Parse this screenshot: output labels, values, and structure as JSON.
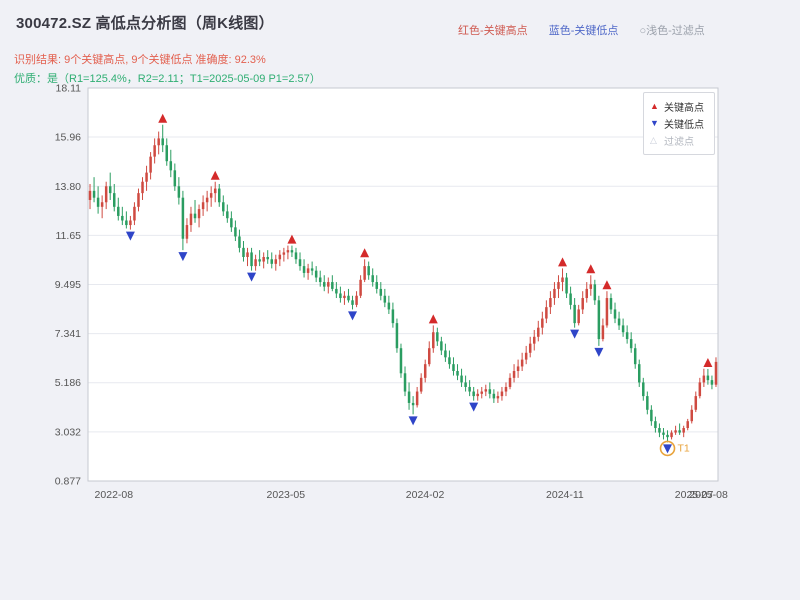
{
  "header": {
    "title": "300472.SZ 高低点分析图（周K线图）",
    "top_legend": [
      {
        "label": "红色-关键高点"
      },
      {
        "label": "蓝色-关键低点"
      },
      {
        "label": "○浅色-过滤点"
      }
    ],
    "result_line": "识别结果: 9个关键高点, 9个关键低点  准确度: 92.3%",
    "quality_line": "优质：是（R1=125.4%，R2=2.11；T1=2025-05-09 P1=2.57）"
  },
  "legend_box": {
    "items": [
      {
        "glyph": "▲",
        "label": "关键高点"
      },
      {
        "glyph": "▼",
        "label": "关键低点"
      },
      {
        "glyph": "△",
        "label": "过滤点"
      }
    ]
  },
  "chart_data": {
    "type": "candlestick",
    "title": "300472.SZ 高低点分析图（周K线图）",
    "period": "weekly",
    "x_range": [
      "2022-08",
      "2025-08"
    ],
    "ylim": [
      0.877,
      18.11
    ],
    "grid": "horizontal",
    "legend_position": "top-right-inside",
    "y_ticks": [
      {
        "value": 0.877,
        "label": "0.877"
      },
      {
        "value": 3.032,
        "label": "3.032"
      },
      {
        "value": 5.186,
        "label": "5.186"
      },
      {
        "value": 7.341,
        "label": "7.341"
      },
      {
        "value": 9.495,
        "label": "9.495"
      },
      {
        "value": 11.65,
        "label": "11.65"
      },
      {
        "value": 13.8,
        "label": "13.80"
      },
      {
        "value": 15.96,
        "label": "15.96"
      },
      {
        "value": 18.11,
        "label": "18.11"
      }
    ],
    "x_ticks": [
      {
        "pos": 0.041,
        "label": "2022-08"
      },
      {
        "pos": 0.314,
        "label": "2023-05"
      },
      {
        "pos": 0.535,
        "label": "2024-02"
      },
      {
        "pos": 0.757,
        "label": "2024-11"
      },
      {
        "pos": 0.962,
        "label": "2025-07"
      },
      {
        "pos": 0.985,
        "label": "2025-08"
      }
    ],
    "colors": {
      "up": "#cf4a41",
      "down": "#2a9d61",
      "grid": "#e7e9ef",
      "border": "#c6c9d0",
      "plot_bg": "#ffffff",
      "figure_bg": "#f0f1f6",
      "high_marker": "#d42a2a",
      "low_marker": "#2f45c8",
      "filtered_marker": "#c8cdd8",
      "annotation": "#e8a33c"
    },
    "key_highs": [
      18,
      31,
      50,
      68,
      85,
      117,
      124,
      128,
      153
    ],
    "key_lows": [
      10,
      23,
      40,
      65,
      80,
      95,
      120,
      126,
      143
    ],
    "t1_annotation": {
      "index": 143,
      "label": "T1",
      "date": "2025-05-09",
      "price": 2.57,
      "color": "#e8a33c"
    },
    "stats": {
      "key_high_count": 9,
      "key_low_count": 9,
      "accuracy_pct": 92.3,
      "R1_pct": 125.4,
      "R2": 2.11,
      "P1": 2.57
    },
    "candles": [
      [
        13.2,
        13.9,
        12.8,
        13.6
      ],
      [
        13.6,
        14.2,
        13.1,
        13.3
      ],
      [
        13.3,
        13.8,
        12.6,
        12.9
      ],
      [
        12.9,
        13.4,
        12.4,
        13.1
      ],
      [
        13.1,
        14.0,
        12.8,
        13.8
      ],
      [
        13.8,
        14.4,
        13.2,
        13.5
      ],
      [
        13.5,
        13.9,
        12.7,
        12.9
      ],
      [
        12.9,
        13.3,
        12.3,
        12.5
      ],
      [
        12.5,
        12.9,
        12.1,
        12.3
      ],
      [
        12.3,
        12.7,
        11.95,
        12.1
      ],
      [
        12.1,
        12.5,
        11.9,
        12.3
      ],
      [
        12.3,
        13.1,
        12.1,
        12.9
      ],
      [
        12.9,
        13.7,
        12.7,
        13.5
      ],
      [
        13.5,
        14.2,
        13.2,
        14.0
      ],
      [
        14.0,
        14.7,
        13.6,
        14.4
      ],
      [
        14.4,
        15.3,
        14.1,
        15.1
      ],
      [
        15.1,
        15.9,
        14.8,
        15.6
      ],
      [
        15.6,
        16.2,
        15.2,
        15.9
      ],
      [
        15.9,
        16.5,
        15.3,
        15.6
      ],
      [
        15.6,
        15.9,
        14.7,
        14.9
      ],
      [
        14.9,
        15.4,
        14.2,
        14.5
      ],
      [
        14.5,
        14.8,
        13.6,
        13.8
      ],
      [
        13.8,
        14.2,
        13.0,
        13.3
      ],
      [
        13.3,
        13.6,
        11.0,
        11.5
      ],
      [
        11.5,
        12.4,
        11.3,
        12.1
      ],
      [
        12.1,
        12.9,
        11.8,
        12.6
      ],
      [
        12.6,
        13.2,
        12.2,
        12.4
      ],
      [
        12.4,
        13.0,
        12.0,
        12.8
      ],
      [
        12.8,
        13.4,
        12.5,
        13.1
      ],
      [
        13.1,
        13.6,
        12.7,
        13.3
      ],
      [
        13.3,
        13.8,
        12.9,
        13.5
      ],
      [
        13.5,
        14.0,
        13.1,
        13.7
      ],
      [
        13.7,
        13.9,
        12.9,
        13.1
      ],
      [
        13.1,
        13.4,
        12.5,
        12.7
      ],
      [
        12.7,
        13.0,
        12.2,
        12.4
      ],
      [
        12.4,
        12.7,
        11.8,
        12.0
      ],
      [
        12.0,
        12.3,
        11.4,
        11.6
      ],
      [
        11.6,
        11.9,
        10.9,
        11.1
      ],
      [
        11.1,
        11.4,
        10.5,
        10.7
      ],
      [
        10.7,
        11.1,
        10.3,
        10.9
      ],
      [
        10.9,
        11.1,
        10.1,
        10.3
      ],
      [
        10.3,
        10.8,
        10.1,
        10.6
      ],
      [
        10.6,
        11.0,
        10.3,
        10.5
      ],
      [
        10.5,
        10.9,
        10.2,
        10.7
      ],
      [
        10.7,
        11.0,
        10.4,
        10.6
      ],
      [
        10.6,
        10.9,
        10.2,
        10.4
      ],
      [
        10.4,
        10.8,
        10.1,
        10.6
      ],
      [
        10.6,
        11.0,
        10.3,
        10.8
      ],
      [
        10.8,
        11.1,
        10.5,
        10.9
      ],
      [
        10.9,
        11.2,
        10.6,
        11.0
      ],
      [
        11.0,
        11.2,
        10.7,
        10.9
      ],
      [
        10.9,
        11.1,
        10.4,
        10.6
      ],
      [
        10.6,
        10.9,
        10.1,
        10.3
      ],
      [
        10.3,
        10.6,
        9.8,
        10.0
      ],
      [
        10.0,
        10.4,
        9.7,
        10.2
      ],
      [
        10.2,
        10.5,
        9.9,
        10.1
      ],
      [
        10.1,
        10.3,
        9.6,
        9.8
      ],
      [
        9.8,
        10.1,
        9.4,
        9.6
      ],
      [
        9.6,
        9.9,
        9.2,
        9.4
      ],
      [
        9.4,
        9.8,
        9.1,
        9.6
      ],
      [
        9.6,
        9.9,
        9.2,
        9.3
      ],
      [
        9.3,
        9.6,
        8.9,
        9.1
      ],
      [
        9.1,
        9.4,
        8.7,
        8.9
      ],
      [
        8.9,
        9.2,
        8.6,
        9.0
      ],
      [
        9.0,
        9.3,
        8.7,
        8.8
      ],
      [
        8.8,
        9.0,
        8.4,
        8.6
      ],
      [
        8.6,
        9.2,
        8.5,
        9.0
      ],
      [
        9.0,
        9.9,
        8.9,
        9.7
      ],
      [
        9.7,
        10.6,
        9.6,
        10.3
      ],
      [
        10.3,
        10.5,
        9.7,
        9.9
      ],
      [
        9.9,
        10.2,
        9.4,
        9.6
      ],
      [
        9.6,
        9.9,
        9.1,
        9.3
      ],
      [
        9.3,
        9.6,
        8.8,
        9.0
      ],
      [
        9.0,
        9.3,
        8.5,
        8.7
      ],
      [
        8.7,
        9.0,
        8.2,
        8.4
      ],
      [
        8.4,
        8.7,
        7.6,
        7.8
      ],
      [
        7.8,
        8.0,
        6.5,
        6.7
      ],
      [
        6.7,
        6.9,
        5.4,
        5.6
      ],
      [
        5.6,
        5.9,
        4.6,
        4.8
      ],
      [
        4.8,
        5.2,
        4.0,
        4.3
      ],
      [
        4.3,
        4.6,
        3.8,
        4.2
      ],
      [
        4.2,
        5.0,
        4.1,
        4.8
      ],
      [
        4.8,
        5.6,
        4.7,
        5.4
      ],
      [
        5.4,
        6.2,
        5.2,
        6.0
      ],
      [
        6.0,
        7.0,
        5.9,
        6.7
      ],
      [
        6.7,
        7.7,
        6.5,
        7.4
      ],
      [
        7.4,
        7.6,
        6.8,
        7.0
      ],
      [
        7.0,
        7.2,
        6.4,
        6.6
      ],
      [
        6.6,
        6.9,
        6.1,
        6.3
      ],
      [
        6.3,
        6.6,
        5.8,
        6.0
      ],
      [
        6.0,
        6.3,
        5.5,
        5.7
      ],
      [
        5.7,
        6.0,
        5.3,
        5.5
      ],
      [
        5.5,
        5.8,
        5.0,
        5.2
      ],
      [
        5.2,
        5.5,
        4.8,
        5.0
      ],
      [
        5.0,
        5.3,
        4.6,
        4.8
      ],
      [
        4.8,
        5.0,
        4.4,
        4.6
      ],
      [
        4.6,
        4.9,
        4.4,
        4.7
      ],
      [
        4.7,
        5.0,
        4.5,
        4.8
      ],
      [
        4.8,
        5.1,
        4.6,
        4.9
      ],
      [
        4.9,
        5.2,
        4.5,
        4.7
      ],
      [
        4.7,
        4.9,
        4.3,
        4.5
      ],
      [
        4.5,
        4.8,
        4.3,
        4.6
      ],
      [
        4.6,
        5.0,
        4.4,
        4.8
      ],
      [
        4.8,
        5.2,
        4.6,
        5.0
      ],
      [
        5.0,
        5.6,
        4.9,
        5.4
      ],
      [
        5.4,
        6.0,
        5.2,
        5.7
      ],
      [
        5.7,
        6.2,
        5.4,
        5.9
      ],
      [
        5.9,
        6.5,
        5.7,
        6.2
      ],
      [
        6.2,
        6.8,
        6.0,
        6.5
      ],
      [
        6.5,
        7.2,
        6.3,
        6.9
      ],
      [
        6.9,
        7.5,
        6.6,
        7.2
      ],
      [
        7.2,
        7.9,
        7.0,
        7.6
      ],
      [
        7.6,
        8.3,
        7.3,
        8.0
      ],
      [
        8.0,
        8.8,
        7.8,
        8.5
      ],
      [
        8.5,
        9.2,
        8.2,
        8.9
      ],
      [
        8.9,
        9.6,
        8.6,
        9.3
      ],
      [
        9.3,
        9.9,
        8.9,
        9.6
      ],
      [
        9.6,
        10.2,
        9.2,
        9.8
      ],
      [
        9.8,
        10.0,
        8.9,
        9.1
      ],
      [
        9.1,
        9.4,
        8.4,
        8.6
      ],
      [
        8.6,
        8.9,
        7.6,
        7.8
      ],
      [
        7.8,
        8.6,
        7.7,
        8.4
      ],
      [
        8.4,
        9.2,
        8.2,
        8.9
      ],
      [
        8.9,
        9.6,
        8.7,
        9.3
      ],
      [
        9.3,
        9.9,
        9.0,
        9.5
      ],
      [
        9.5,
        9.7,
        8.6,
        8.8
      ],
      [
        8.8,
        9.0,
        6.8,
        7.1
      ],
      [
        7.1,
        8.0,
        7.0,
        7.7
      ],
      [
        7.7,
        9.2,
        7.6,
        8.9
      ],
      [
        8.9,
        9.1,
        8.2,
        8.4
      ],
      [
        8.4,
        8.7,
        7.8,
        8.0
      ],
      [
        8.0,
        8.3,
        7.5,
        7.7
      ],
      [
        7.7,
        8.0,
        7.2,
        7.4
      ],
      [
        7.4,
        7.7,
        6.9,
        7.1
      ],
      [
        7.1,
        7.4,
        6.5,
        6.7
      ],
      [
        6.7,
        6.9,
        5.8,
        6.0
      ],
      [
        6.0,
        6.2,
        5.0,
        5.2
      ],
      [
        5.2,
        5.4,
        4.4,
        4.6
      ],
      [
        4.6,
        4.8,
        3.8,
        4.0
      ],
      [
        4.0,
        4.2,
        3.3,
        3.5
      ],
      [
        3.5,
        3.7,
        3.0,
        3.2
      ],
      [
        3.2,
        3.4,
        2.8,
        3.0
      ],
      [
        3.0,
        3.2,
        2.7,
        2.9
      ],
      [
        2.9,
        3.1,
        2.57,
        2.8
      ],
      [
        2.8,
        3.1,
        2.7,
        3.0
      ],
      [
        3.0,
        3.3,
        2.9,
        3.1
      ],
      [
        3.1,
        3.4,
        2.9,
        3.0
      ],
      [
        3.0,
        3.3,
        2.8,
        3.2
      ],
      [
        3.2,
        3.6,
        3.1,
        3.5
      ],
      [
        3.5,
        4.2,
        3.4,
        4.0
      ],
      [
        4.0,
        4.8,
        3.9,
        4.6
      ],
      [
        4.6,
        5.4,
        4.5,
        5.2
      ],
      [
        5.2,
        5.8,
        5.0,
        5.5
      ],
      [
        5.5,
        5.79,
        5.1,
        5.3
      ],
      [
        5.3,
        5.5,
        4.9,
        5.1
      ],
      [
        5.1,
        6.3,
        5.0,
        6.1
      ]
    ]
  }
}
